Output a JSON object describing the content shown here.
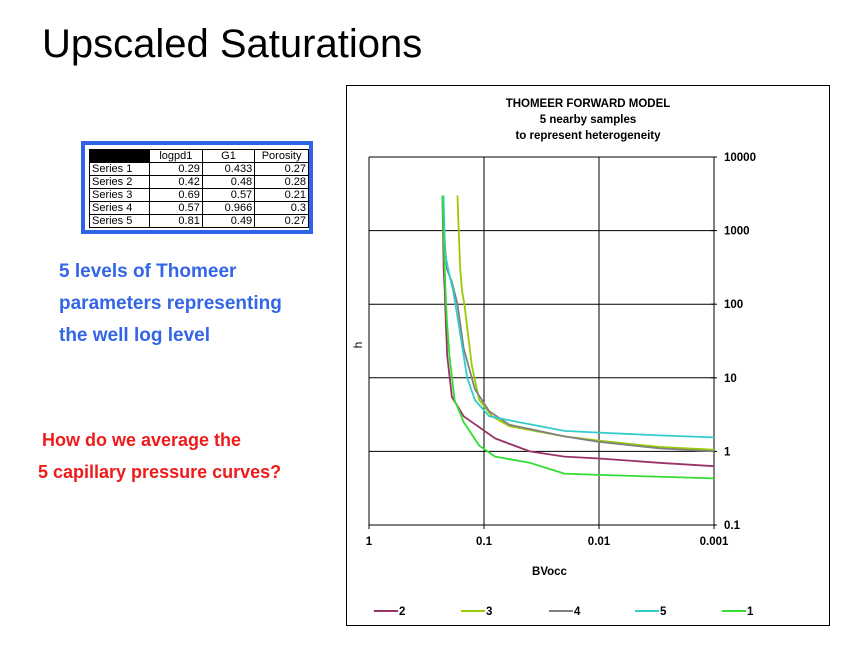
{
  "slide": {
    "title": "Upscaled Saturations",
    "blue_lines": [
      "5 levels of Thomeer",
      "parameters representing",
      "the well log level"
    ],
    "red_lines": [
      "How do we average the",
      "5 capillary pressure curves?"
    ]
  },
  "table": {
    "headers": [
      "logpd1",
      "G1",
      "Porosity"
    ],
    "rows": [
      {
        "label": "Series 1",
        "values": [
          "0.29",
          "0.433",
          "0.27"
        ]
      },
      {
        "label": "Series 2",
        "values": [
          "0.42",
          "0.48",
          "0.28"
        ]
      },
      {
        "label": "Series 3",
        "values": [
          "0.69",
          "0.57",
          "0.21"
        ]
      },
      {
        "label": "Series 4",
        "values": [
          "0.57",
          "0.966",
          "0.3"
        ]
      },
      {
        "label": "Series 5",
        "values": [
          "0.81",
          "0.49",
          "0.27"
        ]
      }
    ]
  },
  "colors": {
    "title_blue": "#3366e6",
    "question_red": "#ee1b1b",
    "table_border": "#2f63e8"
  },
  "chart_data": {
    "type": "line",
    "title_lines": [
      "THOMEER FORWARD MODEL",
      "5 nearby samples",
      "to represent heterogeneity"
    ],
    "xlabel": "BVocc",
    "ylabel": "h",
    "x_scale": "log-reversed",
    "y_scale": "log",
    "xlim": [
      1,
      0.001
    ],
    "ylim": [
      0.1,
      10000
    ],
    "x_ticks": [
      "1",
      "0.1",
      "0.01",
      "0.001"
    ],
    "y_ticks": [
      "10000",
      "1000",
      "100",
      "10",
      "1",
      "0.1"
    ],
    "grid": true,
    "y_axis_side": "right",
    "legend_position": "bottom",
    "series": [
      {
        "name": "2",
        "color": "#993366",
        "x": [
          0.23,
          0.224,
          0.219,
          0.214,
          0.209,
          0.19,
          0.15,
          0.08,
          0.04,
          0.02,
          0.01,
          0.003,
          0.001
        ],
        "y": [
          3000,
          300,
          150,
          50,
          20,
          5.5,
          3.0,
          1.5,
          1.0,
          0.85,
          0.8,
          0.7,
          0.63
        ]
      },
      {
        "name": "3",
        "color": "#99cc00",
        "x": [
          0.17,
          0.166,
          0.161,
          0.155,
          0.148,
          0.128,
          0.11,
          0.085,
          0.06,
          0.02,
          0.01,
          0.003,
          0.001
        ],
        "y": [
          3000,
          1000,
          300,
          150,
          100,
          15,
          5.0,
          3.0,
          2.2,
          1.6,
          1.4,
          1.15,
          1.05
        ]
      },
      {
        "name": "4",
        "color": "#808080",
        "x": [
          0.23,
          0.221,
          0.21,
          0.19,
          0.17,
          0.15,
          0.12,
          0.09,
          0.06,
          0.02,
          0.01,
          0.003,
          0.001
        ],
        "y": [
          3000,
          800,
          300,
          200,
          100,
          25,
          7.0,
          3.5,
          2.3,
          1.6,
          1.35,
          1.1,
          1.0
        ]
      },
      {
        "name": "5",
        "color": "#33cccc",
        "x": [
          0.225,
          0.218,
          0.205,
          0.185,
          0.165,
          0.14,
          0.12,
          0.09,
          0.05,
          0.02,
          0.01,
          0.003,
          0.001
        ],
        "y": [
          3000,
          500,
          300,
          150,
          50,
          10,
          5.0,
          3.0,
          2.5,
          1.9,
          1.8,
          1.65,
          1.55
        ]
      },
      {
        "name": "1",
        "color": "#33dd33",
        "x": [
          0.23,
          0.222,
          0.216,
          0.21,
          0.2,
          0.18,
          0.15,
          0.11,
          0.08,
          0.04,
          0.02,
          0.01,
          0.001
        ],
        "y": [
          3000,
          500,
          150,
          60,
          20,
          5.0,
          2.5,
          1.2,
          0.85,
          0.7,
          0.5,
          0.48,
          0.43
        ]
      }
    ]
  }
}
